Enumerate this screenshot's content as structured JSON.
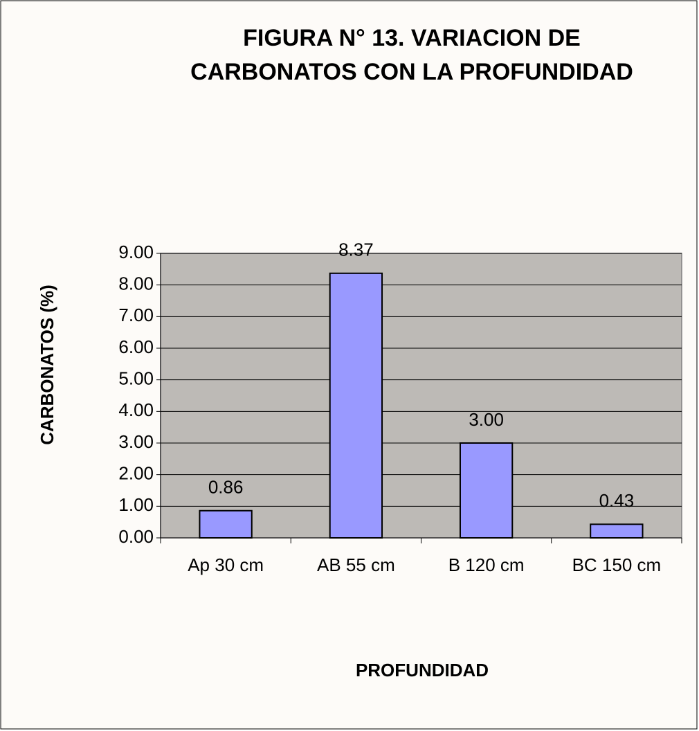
{
  "chart_data": {
    "type": "bar",
    "title": [
      "FIGURA N° 13. VARIACION DE",
      "CARBONATOS CON LA PROFUNDIDAD"
    ],
    "x_label": "PROFUNDIDAD",
    "y_label": "CARBONATOS (%)",
    "categories": [
      "Ap 30 cm",
      "AB 55 cm",
      "B 120 cm",
      "BC 150 cm"
    ],
    "values": [
      0.86,
      8.37,
      3.0,
      0.43
    ],
    "value_labels": [
      "0.86",
      "8.37",
      "3.00",
      "0.43"
    ],
    "color": "#9999ff",
    "ylim": [
      0,
      9
    ],
    "yticks": [
      {
        "value": 0,
        "label": "0.00"
      },
      {
        "value": 1,
        "label": "1.00"
      },
      {
        "value": 2,
        "label": "2.00"
      },
      {
        "value": 3,
        "label": "3.00"
      },
      {
        "value": 4,
        "label": "4.00"
      },
      {
        "value": 5,
        "label": "5.00"
      },
      {
        "value": 6,
        "label": "6.00"
      },
      {
        "value": 7,
        "label": "7.00"
      },
      {
        "value": 8,
        "label": "8.00"
      },
      {
        "value": 9,
        "label": "9.00"
      }
    ],
    "grid": true
  }
}
